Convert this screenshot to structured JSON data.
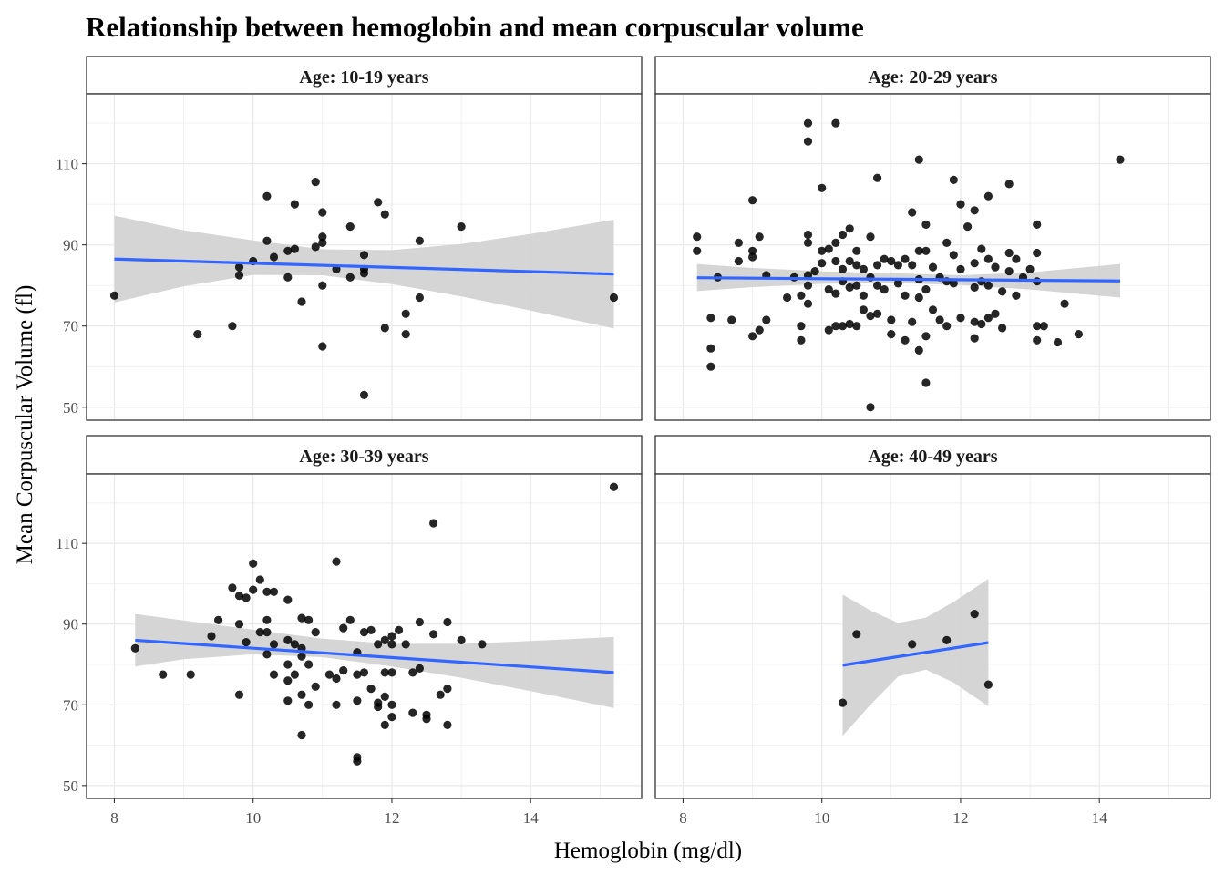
{
  "chart_data": {
    "type": "scatter",
    "title": "Relationship between hemoglobin and mean corpuscular volume",
    "xlabel": "Hemoglobin (mg/dl)",
    "ylabel": "Mean Corpuscular Volume (fl)",
    "xlim": [
      7.6,
      15.6
    ],
    "ylim": [
      46.8,
      127.2
    ],
    "x_ticks": [
      8,
      10,
      12,
      14
    ],
    "y_ticks": [
      50,
      70,
      90,
      110
    ],
    "grid": true,
    "colors": {
      "points": "#000000",
      "fit_line": "#3366FF",
      "ribbon": "#d3d3d3",
      "grid": "#ebebeb",
      "strip_border": "#333333"
    },
    "panels": [
      {
        "label": "Age: 10-19 years",
        "points": [
          [
            8.0,
            77.5
          ],
          [
            9.2,
            68.0
          ],
          [
            9.7,
            70.0
          ],
          [
            9.8,
            82.5
          ],
          [
            9.8,
            84.5
          ],
          [
            10.0,
            86.0
          ],
          [
            10.2,
            102.0
          ],
          [
            10.2,
            91.0
          ],
          [
            10.3,
            87.0
          ],
          [
            10.5,
            82.0
          ],
          [
            10.5,
            88.5
          ],
          [
            10.6,
            89.0
          ],
          [
            10.6,
            100.0
          ],
          [
            10.7,
            76.0
          ],
          [
            10.9,
            105.5
          ],
          [
            10.9,
            89.5
          ],
          [
            11.0,
            98.0
          ],
          [
            11.0,
            92.0
          ],
          [
            11.0,
            90.5
          ],
          [
            11.0,
            80.0
          ],
          [
            11.0,
            65.0
          ],
          [
            11.2,
            84.0
          ],
          [
            11.4,
            82.0
          ],
          [
            11.4,
            94.5
          ],
          [
            11.6,
            83.0
          ],
          [
            11.6,
            84.0
          ],
          [
            11.6,
            87.5
          ],
          [
            11.6,
            53.0
          ],
          [
            11.8,
            100.5
          ],
          [
            11.9,
            97.5
          ],
          [
            11.9,
            69.5
          ],
          [
            12.2,
            73.0
          ],
          [
            12.2,
            68.0
          ],
          [
            12.4,
            91.0
          ],
          [
            12.4,
            77.0
          ],
          [
            13.0,
            94.5
          ],
          [
            15.2,
            77.0
          ]
        ],
        "fit": {
          "x": [
            8.0,
            15.2
          ],
          "y": [
            86.5,
            82.8
          ]
        },
        "band": {
          "x": [
            8.0,
            9.0,
            10.0,
            11.0,
            12.0,
            13.0,
            14.0,
            15.2
          ],
          "lower": [
            75.8,
            79.8,
            82.6,
            82.5,
            80.3,
            77.3,
            73.8,
            69.4
          ],
          "upper": [
            97.2,
            93.6,
            91.1,
            88.9,
            88.7,
            90.2,
            92.7,
            96.2
          ]
        }
      },
      {
        "label": "Age: 20-29 years",
        "points": [
          [
            8.2,
            92.0
          ],
          [
            8.2,
            88.5
          ],
          [
            8.4,
            72.0
          ],
          [
            8.4,
            64.5
          ],
          [
            8.4,
            60.0
          ],
          [
            8.5,
            82.0
          ],
          [
            8.7,
            71.5
          ],
          [
            8.8,
            90.5
          ],
          [
            8.8,
            86.0
          ],
          [
            9.0,
            101.0
          ],
          [
            9.0,
            88.5
          ],
          [
            9.0,
            87.0
          ],
          [
            9.0,
            67.5
          ],
          [
            9.1,
            92.0
          ],
          [
            9.1,
            69.0
          ],
          [
            9.2,
            82.5
          ],
          [
            9.2,
            71.5
          ],
          [
            9.5,
            77.0
          ],
          [
            9.6,
            82.0
          ],
          [
            9.7,
            77.5
          ],
          [
            9.7,
            70.0
          ],
          [
            9.7,
            66.5
          ],
          [
            9.8,
            120.0
          ],
          [
            9.8,
            115.5
          ],
          [
            9.8,
            92.5
          ],
          [
            9.8,
            90.5
          ],
          [
            9.8,
            82.5
          ],
          [
            9.8,
            80.0
          ],
          [
            9.8,
            75.5
          ],
          [
            9.9,
            83.5
          ],
          [
            10.0,
            104.0
          ],
          [
            10.0,
            88.5
          ],
          [
            10.0,
            85.5
          ],
          [
            10.1,
            89.0
          ],
          [
            10.1,
            79.0
          ],
          [
            10.1,
            69.0
          ],
          [
            10.2,
            120.0
          ],
          [
            10.2,
            90.5
          ],
          [
            10.2,
            86.0
          ],
          [
            10.2,
            78.0
          ],
          [
            10.2,
            70.0
          ],
          [
            10.3,
            92.5
          ],
          [
            10.3,
            84.0
          ],
          [
            10.3,
            81.0
          ],
          [
            10.3,
            70.0
          ],
          [
            10.4,
            94.0
          ],
          [
            10.4,
            86.0
          ],
          [
            10.4,
            79.5
          ],
          [
            10.4,
            70.5
          ],
          [
            10.5,
            88.5
          ],
          [
            10.5,
            85.0
          ],
          [
            10.5,
            80.0
          ],
          [
            10.5,
            70.0
          ],
          [
            10.6,
            84.0
          ],
          [
            10.6,
            77.5
          ],
          [
            10.6,
            74.0
          ],
          [
            10.7,
            92.0
          ],
          [
            10.7,
            82.0
          ],
          [
            10.7,
            72.5
          ],
          [
            10.7,
            50.0
          ],
          [
            10.8,
            106.5
          ],
          [
            10.8,
            85.0
          ],
          [
            10.8,
            80.0
          ],
          [
            10.8,
            73.0
          ],
          [
            10.9,
            86.5
          ],
          [
            10.9,
            79.0
          ],
          [
            11.0,
            86.0
          ],
          [
            11.0,
            71.5
          ],
          [
            11.0,
            68.0
          ],
          [
            11.1,
            85.0
          ],
          [
            11.1,
            80.5
          ],
          [
            11.2,
            86.5
          ],
          [
            11.2,
            77.5
          ],
          [
            11.2,
            66.5
          ],
          [
            11.3,
            98.0
          ],
          [
            11.3,
            85.0
          ],
          [
            11.3,
            71.0
          ],
          [
            11.4,
            111.0
          ],
          [
            11.4,
            88.5
          ],
          [
            11.4,
            81.5
          ],
          [
            11.4,
            77.0
          ],
          [
            11.4,
            64.0
          ],
          [
            11.5,
            95.0
          ],
          [
            11.5,
            88.5
          ],
          [
            11.5,
            79.0
          ],
          [
            11.5,
            67.5
          ],
          [
            11.5,
            56.0
          ],
          [
            11.6,
            84.5
          ],
          [
            11.6,
            74.0
          ],
          [
            11.7,
            82.0
          ],
          [
            11.7,
            71.5
          ],
          [
            11.8,
            90.5
          ],
          [
            11.8,
            81.0
          ],
          [
            11.8,
            70.0
          ],
          [
            11.9,
            106.0
          ],
          [
            11.9,
            87.5
          ],
          [
            11.9,
            80.5
          ],
          [
            12.0,
            100.0
          ],
          [
            12.0,
            84.0
          ],
          [
            12.0,
            72.0
          ],
          [
            12.1,
            94.5
          ],
          [
            12.2,
            98.5
          ],
          [
            12.2,
            85.5
          ],
          [
            12.2,
            79.5
          ],
          [
            12.2,
            71.0
          ],
          [
            12.2,
            67.0
          ],
          [
            12.3,
            89.0
          ],
          [
            12.3,
            81.0
          ],
          [
            12.3,
            70.5
          ],
          [
            12.4,
            102.0
          ],
          [
            12.4,
            86.5
          ],
          [
            12.4,
            80.0
          ],
          [
            12.4,
            72.0
          ],
          [
            12.5,
            84.5
          ],
          [
            12.5,
            73.0
          ],
          [
            12.6,
            78.5
          ],
          [
            12.6,
            69.5
          ],
          [
            12.7,
            105.0
          ],
          [
            12.7,
            88.0
          ],
          [
            12.7,
            83.5
          ],
          [
            12.8,
            86.5
          ],
          [
            12.8,
            77.5
          ],
          [
            12.9,
            82.0
          ],
          [
            13.0,
            84.0
          ],
          [
            13.1,
            95.0
          ],
          [
            13.1,
            88.0
          ],
          [
            13.1,
            81.0
          ],
          [
            13.1,
            70.0
          ],
          [
            13.1,
            66.5
          ],
          [
            13.2,
            70.0
          ],
          [
            13.4,
            66.0
          ],
          [
            13.5,
            75.5
          ],
          [
            13.7,
            68.0
          ],
          [
            14.3,
            111.0
          ]
        ],
        "fit": {
          "x": [
            8.2,
            14.3
          ],
          "y": [
            81.9,
            81.1
          ]
        },
        "band": {
          "x": [
            8.2,
            9.0,
            10.0,
            11.0,
            12.0,
            13.0,
            14.3
          ],
          "lower": [
            78.6,
            79.6,
            80.4,
            80.6,
            80.1,
            79.0,
            77.0
          ],
          "upper": [
            85.3,
            84.3,
            83.5,
            83.0,
            82.5,
            83.2,
            85.3
          ]
        }
      },
      {
        "label": "Age: 30-39 years",
        "points": [
          [
            8.3,
            84.0
          ],
          [
            8.7,
            77.5
          ],
          [
            9.1,
            77.5
          ],
          [
            9.4,
            87.0
          ],
          [
            9.5,
            91.0
          ],
          [
            9.7,
            99.0
          ],
          [
            9.8,
            97.0
          ],
          [
            9.8,
            90.0
          ],
          [
            9.8,
            72.5
          ],
          [
            9.9,
            96.5
          ],
          [
            9.9,
            85.5
          ],
          [
            10.0,
            105.0
          ],
          [
            10.0,
            98.5
          ],
          [
            10.1,
            101.0
          ],
          [
            10.1,
            88.0
          ],
          [
            10.2,
            98.0
          ],
          [
            10.2,
            91.0
          ],
          [
            10.2,
            88.0
          ],
          [
            10.2,
            82.5
          ],
          [
            10.3,
            98.0
          ],
          [
            10.3,
            85.0
          ],
          [
            10.3,
            77.5
          ],
          [
            10.5,
            96.0
          ],
          [
            10.5,
            86.0
          ],
          [
            10.5,
            80.0
          ],
          [
            10.5,
            76.0
          ],
          [
            10.5,
            71.0
          ],
          [
            10.6,
            85.0
          ],
          [
            10.6,
            77.5
          ],
          [
            10.7,
            91.5
          ],
          [
            10.7,
            84.0
          ],
          [
            10.7,
            82.0
          ],
          [
            10.7,
            72.5
          ],
          [
            10.7,
            62.5
          ],
          [
            10.8,
            91.0
          ],
          [
            10.8,
            80.0
          ],
          [
            10.8,
            70.0
          ],
          [
            10.9,
            88.0
          ],
          [
            10.9,
            74.5
          ],
          [
            11.1,
            77.5
          ],
          [
            11.2,
            105.5
          ],
          [
            11.2,
            76.5
          ],
          [
            11.2,
            70.0
          ],
          [
            11.3,
            89.0
          ],
          [
            11.3,
            78.5
          ],
          [
            11.4,
            91.0
          ],
          [
            11.5,
            83.0
          ],
          [
            11.5,
            77.5
          ],
          [
            11.5,
            71.0
          ],
          [
            11.5,
            57.0
          ],
          [
            11.5,
            56.0
          ],
          [
            11.6,
            88.0
          ],
          [
            11.6,
            78.0
          ],
          [
            11.7,
            88.5
          ],
          [
            11.7,
            74.0
          ],
          [
            11.8,
            85.0
          ],
          [
            11.8,
            70.5
          ],
          [
            11.8,
            69.5
          ],
          [
            11.9,
            86.0
          ],
          [
            11.9,
            78.0
          ],
          [
            11.9,
            72.0
          ],
          [
            11.9,
            65.0
          ],
          [
            12.0,
            87.0
          ],
          [
            12.0,
            85.0
          ],
          [
            12.0,
            78.0
          ],
          [
            12.0,
            70.0
          ],
          [
            12.0,
            67.0
          ],
          [
            12.1,
            88.5
          ],
          [
            12.2,
            85.0
          ],
          [
            12.3,
            78.0
          ],
          [
            12.3,
            68.0
          ],
          [
            12.4,
            90.5
          ],
          [
            12.4,
            79.0
          ],
          [
            12.5,
            67.5
          ],
          [
            12.5,
            66.5
          ],
          [
            12.6,
            115.0
          ],
          [
            12.6,
            87.5
          ],
          [
            12.7,
            72.5
          ],
          [
            12.8,
            90.5
          ],
          [
            12.8,
            74.0
          ],
          [
            12.8,
            65.0
          ],
          [
            13.0,
            86.0
          ],
          [
            13.3,
            85.0
          ],
          [
            15.2,
            124.0
          ]
        ],
        "fit": {
          "x": [
            8.3,
            15.2
          ],
          "y": [
            86.0,
            78.0
          ]
        },
        "band": {
          "x": [
            8.3,
            9.0,
            10.0,
            11.0,
            12.0,
            13.0,
            14.0,
            15.2
          ],
          "lower": [
            79.5,
            81.3,
            82.5,
            81.8,
            79.5,
            76.7,
            73.4,
            69.2
          ],
          "upper": [
            92.5,
            90.9,
            88.6,
            86.4,
            85.1,
            85.1,
            85.8,
            86.8
          ]
        }
      },
      {
        "label": "Age: 40-49 years",
        "points": [
          [
            10.3,
            70.5
          ],
          [
            10.5,
            87.5
          ],
          [
            11.3,
            85.0
          ],
          [
            11.8,
            86.0
          ],
          [
            12.2,
            92.5
          ],
          [
            12.4,
            75.0
          ]
        ],
        "fit": {
          "x": [
            10.3,
            12.4
          ],
          "y": [
            79.8,
            85.4
          ]
        },
        "band": {
          "x": [
            10.3,
            10.7,
            11.1,
            11.5,
            11.9,
            12.4
          ],
          "lower": [
            62.3,
            70.0,
            77.0,
            78.7,
            75.5,
            69.6
          ],
          "upper": [
            97.3,
            93.4,
            90.3,
            91.6,
            95.5,
            101.2
          ]
        }
      }
    ]
  }
}
